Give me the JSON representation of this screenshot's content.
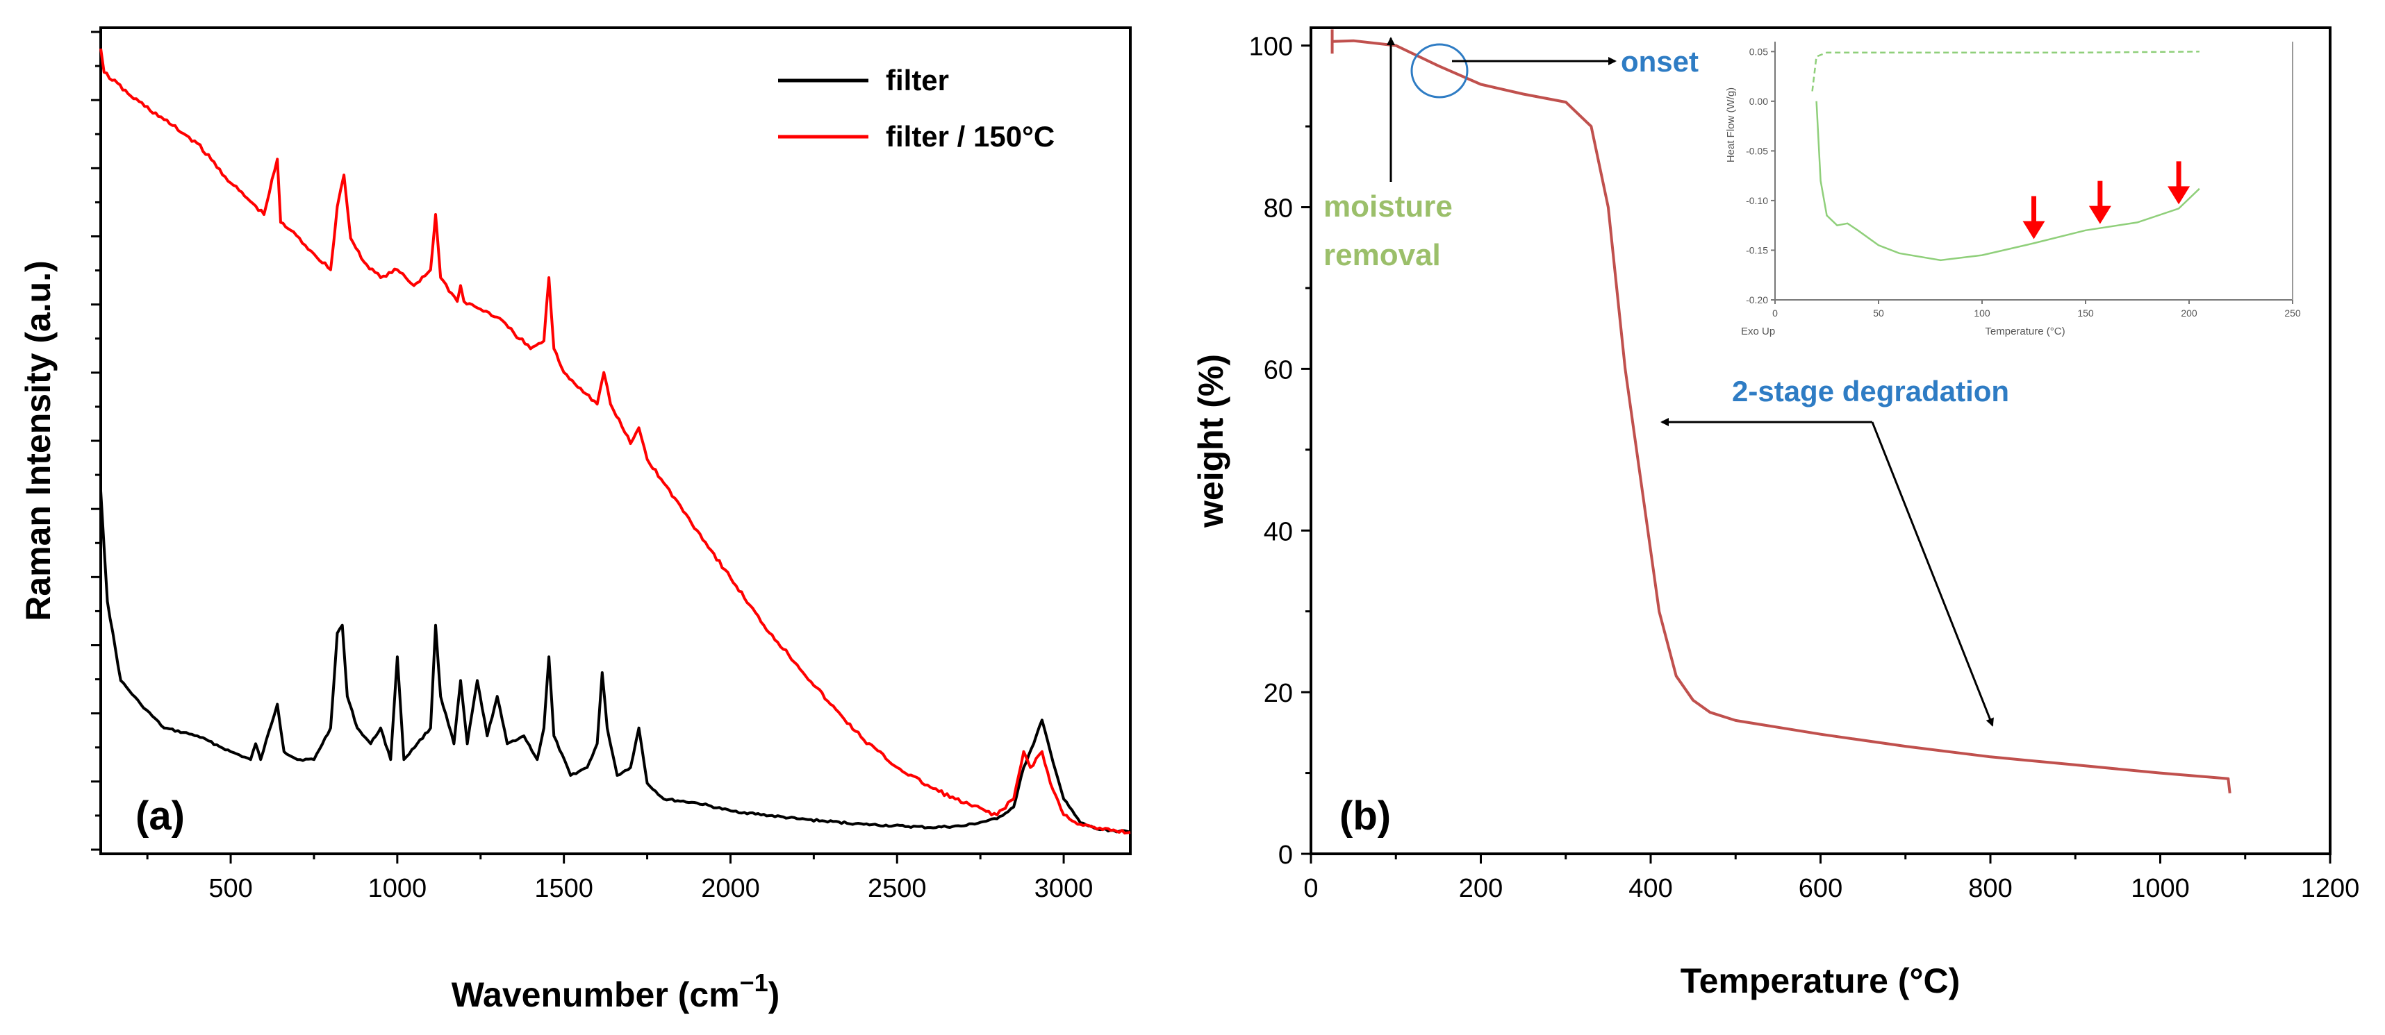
{
  "chart_data": [
    {
      "type": "line",
      "panel_label": "(a)",
      "xlabel": "Wavenumber (cm",
      "xlabel_sup": "−1",
      "xlabel_end": ")",
      "ylabel": "Raman Intensity (a.u.)",
      "xlim": [
        110,
        3200
      ],
      "ylim": [
        0,
        100
      ],
      "x_ticks": [
        "500",
        "1000",
        "1500",
        "2000",
        "2500",
        "3000"
      ],
      "x_tick_values": [
        500,
        1000,
        1500,
        2000,
        2500,
        3000
      ],
      "y_ticks_shown": false,
      "grid": false,
      "legend": "top-right",
      "series": [
        {
          "name": "filter",
          "color": "#000000",
          "x": [
            110,
            130,
            170,
            230,
            300,
            400,
            500,
            560,
            575,
            590,
            640,
            660,
            700,
            750,
            800,
            820,
            835,
            850,
            880,
            920,
            950,
            980,
            1000,
            1020,
            1060,
            1100,
            1115,
            1130,
            1170,
            1190,
            1210,
            1240,
            1270,
            1300,
            1330,
            1380,
            1420,
            1440,
            1455,
            1470,
            1520,
            1570,
            1600,
            1615,
            1630,
            1660,
            1700,
            1725,
            1750,
            1800,
            1900,
            2000,
            2200,
            2400,
            2600,
            2700,
            2800,
            2850,
            2880,
            2910,
            2935,
            2960,
            3000,
            3050,
            3100,
            3200
          ],
          "y": [
            44,
            30,
            20,
            17,
            14,
            13,
            11,
            10,
            12,
            10,
            17,
            11,
            10,
            10,
            14,
            26,
            27,
            18,
            14,
            12,
            14,
            10,
            23,
            10,
            12,
            14,
            27,
            18,
            12,
            20,
            12,
            20,
            13,
            18,
            12,
            13,
            10,
            14,
            23,
            13,
            8,
            9,
            12,
            21,
            14,
            8,
            9,
            14,
            7,
            5,
            4.5,
            3.5,
            2.5,
            1.8,
            1.4,
            1.6,
            2.5,
            4,
            9,
            12,
            15,
            11,
            5,
            2,
            1.2,
            0.8
          ]
        },
        {
          "name": "filter / 150°C",
          "color": "#ff0000",
          "x": [
            110,
            120,
            200,
            300,
            400,
            500,
            600,
            640,
            650,
            680,
            750,
            800,
            820,
            840,
            860,
            900,
            950,
            1000,
            1050,
            1100,
            1115,
            1130,
            1180,
            1190,
            1200,
            1250,
            1300,
            1350,
            1400,
            1440,
            1455,
            1470,
            1500,
            1550,
            1600,
            1620,
            1640,
            1700,
            1725,
            1750,
            1800,
            1900,
            2000,
            2100,
            2200,
            2300,
            2400,
            2500,
            2600,
            2700,
            2800,
            2850,
            2880,
            2900,
            2935,
            2960,
            3000,
            3050,
            3100,
            3200
          ],
          "y": [
            100,
            97,
            94,
            91,
            88,
            83,
            79,
            86,
            78,
            77,
            74,
            72,
            80,
            84,
            76,
            73,
            71,
            72,
            70,
            72,
            79,
            71,
            68,
            70,
            68,
            67,
            66,
            64,
            62,
            63,
            71,
            62,
            59,
            57,
            55,
            59,
            55,
            50,
            52,
            48,
            45,
            39,
            33,
            27,
            22,
            17,
            12.5,
            9,
            6.5,
            4.5,
            3,
            5,
            11,
            9,
            11,
            7,
            3,
            1.8,
            1.2,
            0.8
          ]
        }
      ]
    },
    {
      "type": "line",
      "panel_label": "(b)",
      "xlabel": "Temperature (°C)",
      "ylabel": "weight (%)",
      "xlim": [
        0,
        1200
      ],
      "ylim": [
        0,
        101
      ],
      "x_ticks": [
        "0",
        "200",
        "400",
        "600",
        "800",
        "1000",
        "1200"
      ],
      "x_tick_values": [
        0,
        200,
        400,
        600,
        800,
        1000,
        1200
      ],
      "y_ticks": [
        "0",
        "20",
        "40",
        "60",
        "80",
        "100"
      ],
      "y_tick_values": [
        0,
        20,
        40,
        60,
        80,
        100
      ],
      "grid": false,
      "series": [
        {
          "color": "#c0504d",
          "x": [
            25,
            50,
            100,
            150,
            200,
            250,
            300,
            330,
            350,
            370,
            390,
            410,
            430,
            450,
            470,
            500,
            600,
            700,
            800,
            900,
            1000,
            1080,
            1082
          ],
          "y": [
            100.5,
            100.6,
            100,
            97.5,
            95.2,
            94,
            93,
            90,
            80,
            60,
            45,
            30,
            22,
            19,
            17.5,
            16.5,
            14.8,
            13.3,
            12,
            11,
            10,
            9.3,
            7.5
          ]
        }
      ],
      "annotations": {
        "onset": "onset",
        "moisture_line1": "moisture",
        "moisture_line2": "removal",
        "degradation": "2-stage degradation"
      },
      "inset": {
        "ylabel": "Heat Flow (W/g)",
        "xlabel": "Temperature (°C)",
        "corner_label": "Exo Up",
        "xlim": [
          0,
          250
        ],
        "ylim": [
          -0.2,
          0.06
        ],
        "x_ticks": [
          "0",
          "50",
          "100",
          "150",
          "200",
          "250"
        ],
        "x_tick_values": [
          0,
          50,
          100,
          150,
          200,
          250
        ],
        "y_ticks": [
          "0.05",
          "0.00",
          "-0.05",
          "-0.10",
          "-0.15",
          "-0.20"
        ],
        "y_tick_values": [
          0.05,
          0.0,
          -0.05,
          -0.1,
          -0.15,
          -0.2
        ],
        "series": [
          {
            "color": "#8fcf7a",
            "dashed": true,
            "x": [
              18,
              20,
              25,
              40,
              100,
              150,
              205
            ],
            "y": [
              0.01,
              0.045,
              0.049,
              0.049,
              0.049,
              0.049,
              0.05
            ]
          },
          {
            "color": "#8fcf7a",
            "dashed": false,
            "x": [
              20,
              22,
              25,
              30,
              35,
              40,
              50,
              60,
              80,
              100,
              125,
              150,
              175,
              195,
              205
            ],
            "y": [
              0.0,
              -0.08,
              -0.115,
              -0.125,
              -0.123,
              -0.13,
              -0.145,
              -0.153,
              -0.16,
              -0.155,
              -0.143,
              -0.13,
              -0.122,
              -0.108,
              -0.088
            ]
          }
        ],
        "arrows_at": [
          125,
          157,
          195
        ],
        "arrow_color": "#ff0000"
      }
    }
  ]
}
